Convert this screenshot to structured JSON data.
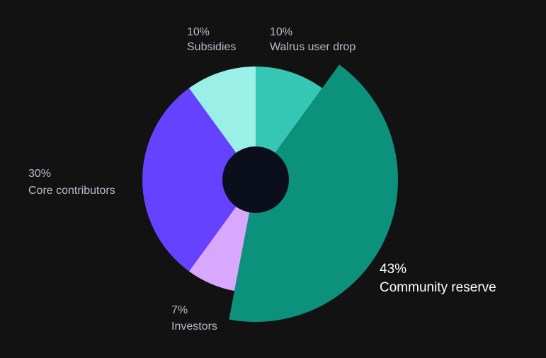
{
  "page": {
    "background": "#121212",
    "center_color": "#0b0f1c",
    "label_color": "#b9bcc8",
    "highlight_label_color": "#ffffff"
  },
  "chart_data": {
    "type": "pie",
    "variant": "donut with exploded highlighted slice",
    "highlighted_slice": "Community reserve",
    "slices": [
      {
        "label": "Walrus user drop",
        "percent_label": "10%",
        "value": 10,
        "color": "#36c7b4"
      },
      {
        "label": "Community reserve",
        "percent_label": "43%",
        "value": 43,
        "color": "#0b917c"
      },
      {
        "label": "Investors",
        "percent_label": "7%",
        "value": 7,
        "color": "#d8a8ff"
      },
      {
        "label": "Core contributors",
        "percent_label": "30%",
        "value": 30,
        "color": "#6442ff"
      },
      {
        "label": "Subsidies",
        "percent_label": "10%",
        "value": 10,
        "color": "#9aefe6"
      }
    ]
  }
}
